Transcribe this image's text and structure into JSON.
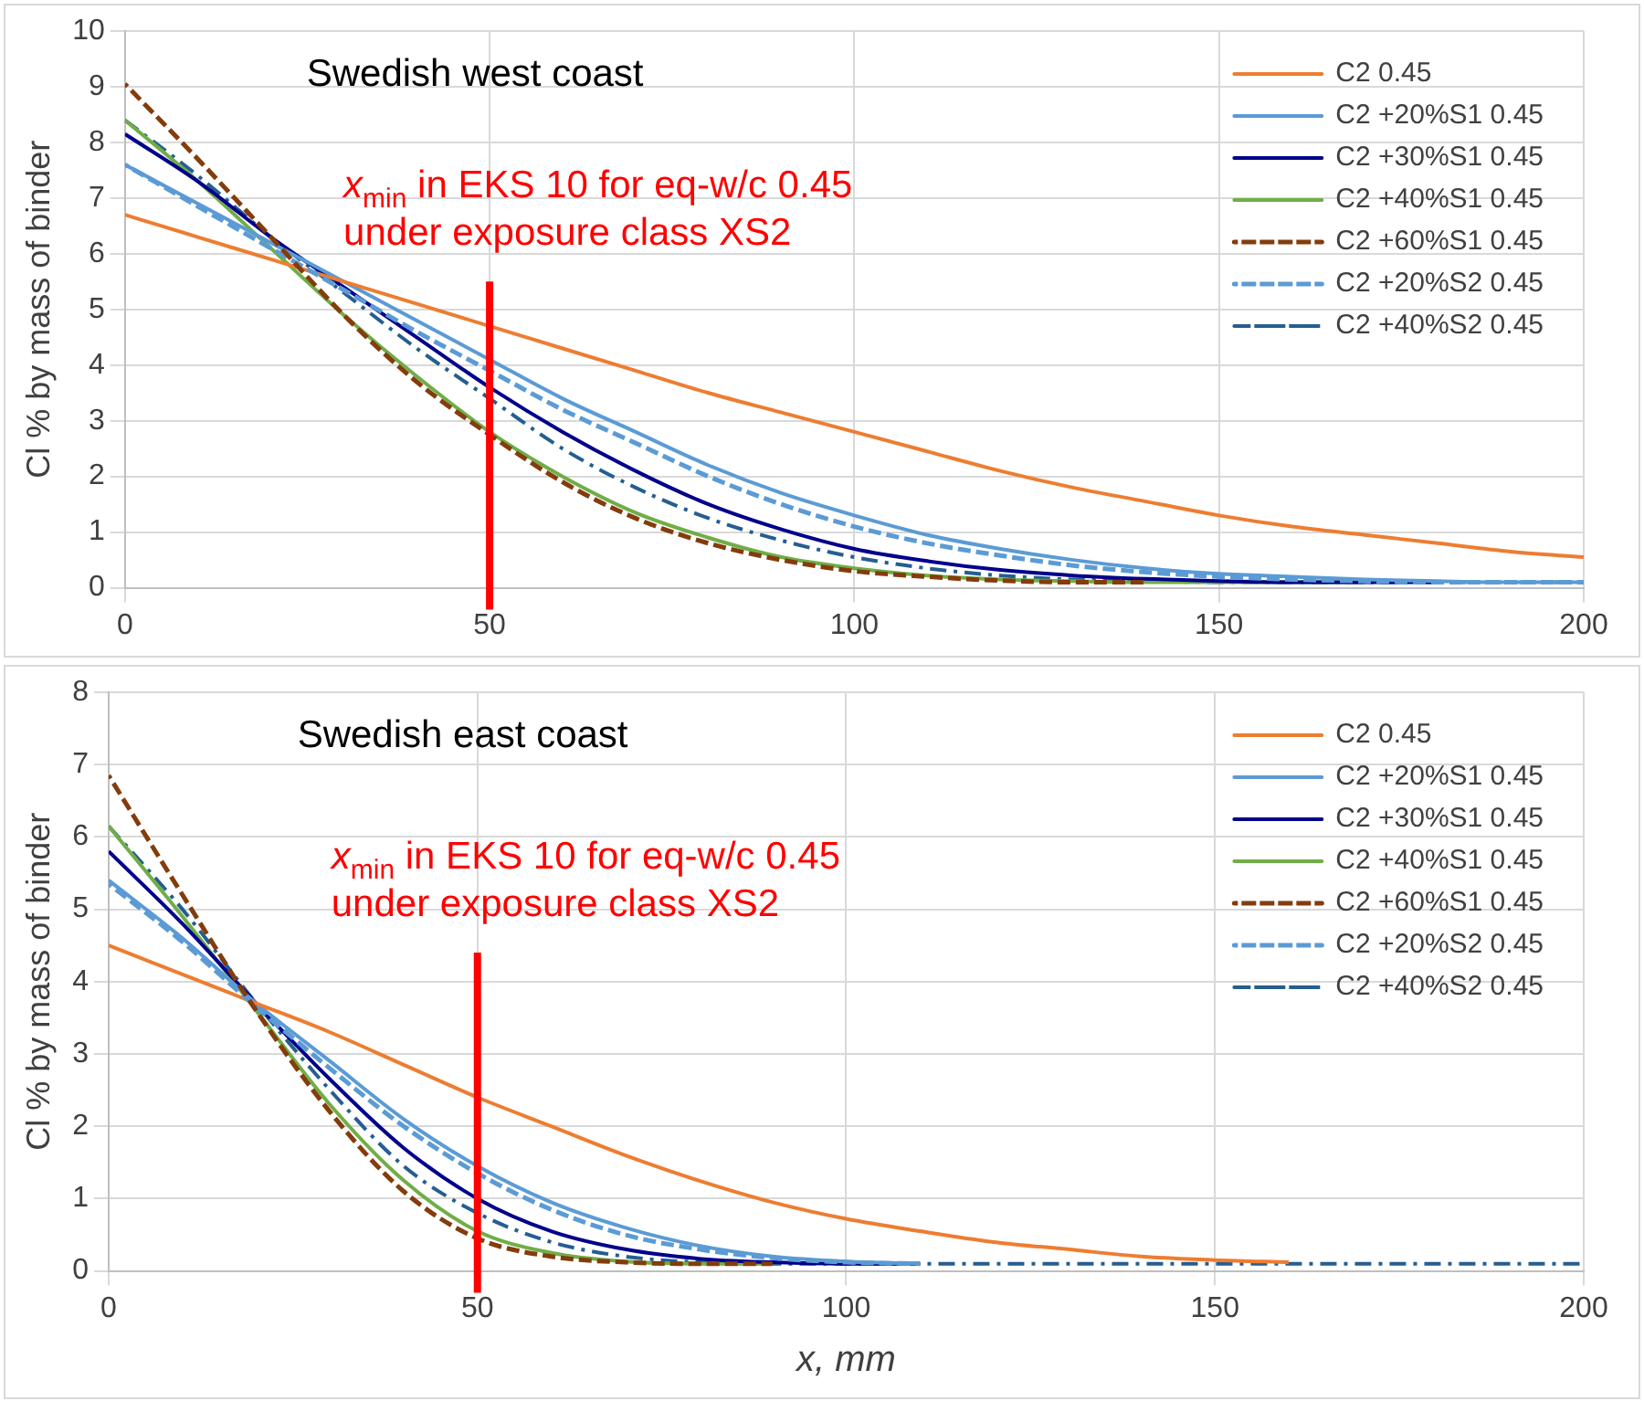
{
  "chart_data": [
    {
      "type": "line",
      "title": "Swedish west coast",
      "ylabel": "Cl % by mass of binder",
      "x": [
        0,
        10,
        20,
        30,
        40,
        50,
        60,
        70,
        80,
        90,
        100,
        110,
        120,
        130,
        140,
        150,
        160,
        170,
        180,
        190,
        200
      ],
      "xlim": [
        0,
        200
      ],
      "xticks": [
        0,
        50,
        100,
        150,
        200
      ],
      "ylim": [
        0,
        10
      ],
      "yticks": [
        0,
        1,
        2,
        3,
        4,
        5,
        6,
        7,
        8,
        9,
        10
      ],
      "grid": true,
      "legend": "top right",
      "marker": "none",
      "ref_lines": [
        {
          "axis": "x",
          "value": 50,
          "label": "x$_{min}$ in EKS 10 for eq-w/c 0.45\nunder exposure class XS2",
          "color": "#ff0000"
        }
      ],
      "series": [
        {
          "name": "C2 0.45",
          "color": "#ed7d31",
          "line_style": "solid",
          "values": [
            6.7,
            6.3,
            5.9,
            5.5,
            5.1,
            4.7,
            4.3,
            3.9,
            3.5,
            3.15,
            2.8,
            2.45,
            2.1,
            1.8,
            1.55,
            1.3,
            1.1,
            0.95,
            0.8,
            0.65,
            0.55
          ]
        },
        {
          "name": "C2 +20%S1 0.45",
          "color": "#5b9bd5",
          "line_style": "solid",
          "values": [
            7.6,
            6.9,
            6.2,
            5.5,
            4.8,
            4.1,
            3.4,
            2.8,
            2.2,
            1.7,
            1.3,
            0.95,
            0.7,
            0.5,
            0.35,
            0.25,
            0.2,
            0.15,
            0.12,
            0.1,
            0.1
          ]
        },
        {
          "name": "C2 +30%S1 0.45",
          "color": "#00008b",
          "line_style": "solid",
          "values": [
            8.15,
            7.3,
            6.3,
            5.4,
            4.5,
            3.6,
            2.8,
            2.1,
            1.5,
            1.05,
            0.7,
            0.48,
            0.32,
            0.22,
            0.16,
            0.12,
            0.1,
            0.1,
            0.1,
            null,
            null
          ]
        },
        {
          "name": "C2 +40%S1 0.45",
          "color": "#70ad47",
          "line_style": "solid",
          "values": [
            8.4,
            7.3,
            6.1,
            4.9,
            3.8,
            2.8,
            2.0,
            1.35,
            0.9,
            0.55,
            0.35,
            0.22,
            0.15,
            0.12,
            0.1,
            0.1,
            0.1,
            0.1,
            null,
            null,
            null
          ]
        },
        {
          "name": "C2 +60%S1 0.45",
          "color": "#843c0c",
          "line_style": "dashed",
          "values": [
            9.05,
            7.7,
            6.3,
            4.9,
            3.7,
            2.75,
            1.9,
            1.25,
            0.8,
            0.5,
            0.3,
            0.2,
            0.13,
            0.1,
            0.1,
            null,
            null,
            null,
            null,
            null,
            null
          ]
        },
        {
          "name": "C2 +20%S2 0.45",
          "color": "#5b9bd5",
          "line_style": "dashed",
          "values": [
            7.6,
            6.85,
            6.1,
            5.35,
            4.6,
            3.9,
            3.2,
            2.6,
            2.0,
            1.5,
            1.1,
            0.8,
            0.58,
            0.4,
            0.28,
            0.2,
            0.15,
            0.12,
            0.1,
            0.1,
            0.1
          ]
        },
        {
          "name": "C2 +40%S2 0.45",
          "color": "#255e91",
          "line_style": "dashdot",
          "values": [
            8.4,
            7.4,
            6.3,
            5.3,
            4.3,
            3.4,
            2.5,
            1.8,
            1.25,
            0.85,
            0.55,
            0.35,
            0.22,
            0.15,
            0.12,
            0.1,
            0.1,
            0.1,
            0.1,
            0.1,
            0.1
          ]
        }
      ]
    },
    {
      "type": "line",
      "title": "Swedish east coast",
      "ylabel": "Cl % by mass of binder",
      "xlabel": "x, mm",
      "x": [
        0,
        10,
        20,
        30,
        40,
        50,
        60,
        70,
        80,
        90,
        100,
        110,
        120,
        130,
        140,
        150,
        160,
        170,
        180,
        190,
        200
      ],
      "xlim": [
        0,
        200
      ],
      "xticks": [
        0,
        50,
        100,
        150,
        200
      ],
      "ylim": [
        0,
        8
      ],
      "yticks": [
        0,
        1,
        2,
        3,
        4,
        5,
        6,
        7,
        8
      ],
      "grid": true,
      "legend": "top right",
      "marker": "none",
      "ref_lines": [
        {
          "axis": "x",
          "value": 50,
          "label": "x$_{min}$ in EKS 10 for eq-w/c 0.45\nunder exposure class XS2",
          "color": "#ff0000"
        }
      ],
      "series": [
        {
          "name": "C2 0.45",
          "color": "#ed7d31",
          "line_style": "solid",
          "values": [
            4.5,
            4.1,
            3.7,
            3.3,
            2.85,
            2.4,
            2.0,
            1.6,
            1.25,
            0.95,
            0.72,
            0.55,
            0.4,
            0.3,
            0.2,
            0.15,
            0.12,
            null,
            null,
            null,
            null
          ]
        },
        {
          "name": "C2 +20%S1 0.45",
          "color": "#5b9bd5",
          "line_style": "solid",
          "values": [
            5.4,
            4.6,
            3.7,
            2.9,
            2.1,
            1.45,
            0.95,
            0.6,
            0.35,
            0.2,
            0.13,
            0.1,
            null,
            null,
            null,
            null,
            null,
            null,
            null,
            null,
            null
          ]
        },
        {
          "name": "C2 +30%S1 0.45",
          "color": "#00008b",
          "line_style": "solid",
          "values": [
            5.8,
            4.8,
            3.7,
            2.65,
            1.7,
            1.0,
            0.55,
            0.3,
            0.17,
            0.12,
            0.1,
            0.1,
            null,
            null,
            null,
            null,
            null,
            null,
            null,
            null,
            null
          ]
        },
        {
          "name": "C2 +40%S1 0.45",
          "color": "#70ad47",
          "line_style": "solid",
          "values": [
            6.15,
            4.9,
            3.6,
            2.3,
            1.25,
            0.55,
            0.25,
            0.13,
            0.1,
            0.1,
            null,
            null,
            null,
            null,
            null,
            null,
            null,
            null,
            null,
            null,
            null
          ]
        },
        {
          "name": "C2 +60%S1 0.45",
          "color": "#843c0c",
          "line_style": "dashed",
          "values": [
            6.85,
            5.2,
            3.6,
            2.2,
            1.1,
            0.45,
            0.2,
            0.12,
            0.1,
            0.1,
            null,
            null,
            null,
            null,
            null,
            null,
            null,
            null,
            null,
            null,
            null
          ]
        },
        {
          "name": "C2 +20%S2 0.45",
          "color": "#5b9bd5",
          "line_style": "dashed",
          "values": [
            5.35,
            4.55,
            3.65,
            2.8,
            2.0,
            1.35,
            0.85,
            0.5,
            0.3,
            0.18,
            0.12,
            0.1,
            null,
            null,
            null,
            null,
            null,
            null,
            null,
            null,
            null
          ]
        },
        {
          "name": "C2 +40%S2 0.45",
          "color": "#255e91",
          "line_style": "dashdot",
          "values": [
            6.15,
            5.0,
            3.7,
            2.5,
            1.45,
            0.8,
            0.4,
            0.2,
            0.12,
            0.1,
            0.1,
            0.1,
            0.1,
            0.1,
            0.1,
            0.1,
            0.1,
            0.1,
            0.1,
            0.1,
            0.1
          ]
        }
      ]
    }
  ]
}
